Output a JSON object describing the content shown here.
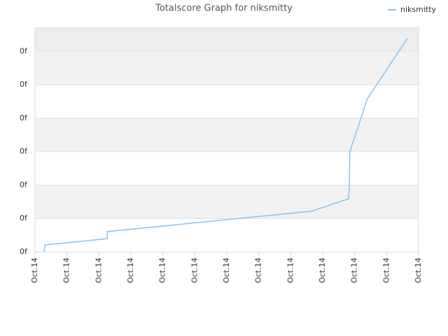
{
  "chart_data": {
    "type": "line",
    "title": "Totalscore Graph for niksmitty",
    "x": [
      0.28,
      0.31,
      2.26,
      2.26,
      8.65,
      9.81,
      9.83,
      9.85,
      10.4,
      11.65
    ],
    "series": [
      {
        "name": "niksmitty",
        "color": "#88c4ee",
        "values": [
          0,
          0.21,
          0.4,
          0.61,
          1.22,
          1.59,
          1.93,
          3.0,
          4.59,
          6.39
        ]
      }
    ],
    "xlim": [
      0,
      12
    ],
    "xticks": [
      {
        "value": 0,
        "label": "Oct.14"
      },
      {
        "value": 1,
        "label": "Oct.14"
      },
      {
        "value": 2,
        "label": "Oct.14"
      },
      {
        "value": 3,
        "label": "Oct.14"
      },
      {
        "value": 4,
        "label": "Oct.14"
      },
      {
        "value": 5,
        "label": "Oct.14"
      },
      {
        "value": 6,
        "label": "Oct.14"
      },
      {
        "value": 7,
        "label": "Oct.14"
      },
      {
        "value": 8,
        "label": "Oct.14"
      },
      {
        "value": 9,
        "label": "Oct.14"
      },
      {
        "value": 10,
        "label": "Oct.14"
      },
      {
        "value": 11,
        "label": "Oct.14"
      },
      {
        "value": 12,
        "label": "Oct.14"
      }
    ],
    "ylim": [
      0,
      6.7
    ],
    "yticks": [
      {
        "value": 0,
        "label": "0f"
      },
      {
        "value": 1,
        "label": "0f"
      },
      {
        "value": 2,
        "label": "0f"
      },
      {
        "value": 3,
        "label": "0f"
      },
      {
        "value": 4,
        "label": "0f"
      },
      {
        "value": 5,
        "label": "0f"
      },
      {
        "value": 6,
        "label": "0f"
      }
    ],
    "grid": true,
    "legend": "top-right"
  }
}
